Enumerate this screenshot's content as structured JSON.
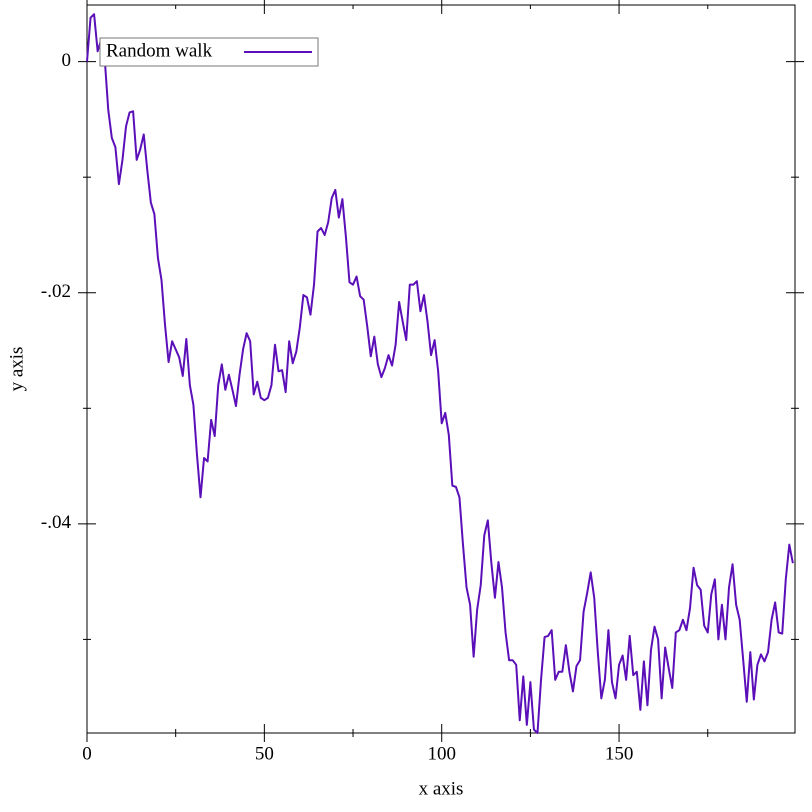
{
  "chart_data": {
    "type": "line",
    "xlabel": "x axis",
    "ylabel": "y axis",
    "x": [
      0,
      1,
      2,
      3,
      4,
      5,
      6,
      7,
      8,
      9,
      10,
      11,
      12,
      13,
      14,
      15,
      16,
      17,
      18,
      19,
      20,
      21,
      22,
      23,
      24,
      25,
      26,
      27,
      28,
      29,
      30,
      31,
      32,
      33,
      34,
      35,
      36,
      37,
      38,
      39,
      40,
      41,
      42,
      43,
      44,
      45,
      46,
      47,
      48,
      49,
      50,
      51,
      52,
      53,
      54,
      55,
      56,
      57,
      58,
      59,
      60,
      61,
      62,
      63,
      64,
      65,
      66,
      67,
      68,
      69,
      70,
      71,
      72,
      73,
      74,
      75,
      76,
      77,
      78,
      79,
      80,
      81,
      82,
      83,
      84,
      85,
      86,
      87,
      88,
      89,
      90,
      91,
      92,
      93,
      94,
      95,
      96,
      97,
      98,
      99,
      100,
      101,
      102,
      103,
      104,
      105,
      106,
      107,
      108,
      109,
      110,
      111,
      112,
      113,
      114,
      115,
      116,
      117,
      118,
      119,
      120,
      121,
      122,
      123,
      124,
      125,
      126,
      127,
      128,
      129,
      130,
      131,
      132,
      133,
      134,
      135,
      136,
      137,
      138,
      139,
      140,
      141,
      142,
      143,
      144,
      145,
      146,
      147,
      148,
      149,
      150,
      151,
      152,
      153,
      154,
      155,
      156,
      157,
      158,
      159,
      160,
      161,
      162,
      163,
      164,
      165,
      166,
      167,
      168,
      169,
      170,
      171,
      172,
      173,
      174,
      175,
      176,
      177,
      178,
      179,
      180,
      181,
      182,
      183,
      184,
      185,
      186,
      187,
      188,
      189,
      190,
      191,
      192,
      193,
      194,
      195,
      196,
      197,
      198,
      199
    ],
    "series": [
      {
        "name": "Random walk",
        "color": "#5b0fb8",
        "values": [
          0,
          0.0038,
          0.0041,
          0.0009,
          0.0019,
          0.0002,
          -0.0042,
          -0.0066,
          -0.0074,
          -0.0106,
          -0.0085,
          -0.0056,
          -0.0044,
          -0.0043,
          -0.0085,
          -0.0076,
          -0.0063,
          -0.0094,
          -0.0122,
          -0.0132,
          -0.017,
          -0.0189,
          -0.0228,
          -0.026,
          -0.0242,
          -0.0249,
          -0.0256,
          -0.0272,
          -0.024,
          -0.028,
          -0.0297,
          -0.034,
          -0.0377,
          -0.0343,
          -0.0346,
          -0.031,
          -0.0324,
          -0.028,
          -0.0262,
          -0.0284,
          -0.0271,
          -0.0284,
          -0.0298,
          -0.0271,
          -0.0249,
          -0.0235,
          -0.0242,
          -0.0288,
          -0.0277,
          -0.0291,
          -0.0293,
          -0.0291,
          -0.028,
          -0.0245,
          -0.0268,
          -0.0267,
          -0.0286,
          -0.0242,
          -0.0261,
          -0.0251,
          -0.023,
          -0.0202,
          -0.0204,
          -0.0219,
          -0.0193,
          -0.0147,
          -0.0144,
          -0.015,
          -0.0139,
          -0.0118,
          -0.0111,
          -0.0135,
          -0.0119,
          -0.0152,
          -0.0191,
          -0.0193,
          -0.0186,
          -0.0203,
          -0.0206,
          -0.0229,
          -0.0255,
          -0.0238,
          -0.0262,
          -0.0273,
          -0.0265,
          -0.0254,
          -0.0263,
          -0.0245,
          -0.0208,
          -0.0225,
          -0.0241,
          -0.0193,
          -0.0193,
          -0.019,
          -0.0216,
          -0.0202,
          -0.0225,
          -0.0254,
          -0.0241,
          -0.0268,
          -0.0313,
          -0.0304,
          -0.0323,
          -0.0367,
          -0.0368,
          -0.0377,
          -0.0418,
          -0.0455,
          -0.047,
          -0.0515,
          -0.0474,
          -0.0453,
          -0.041,
          -0.0397,
          -0.0434,
          -0.0464,
          -0.0433,
          -0.0455,
          -0.0494,
          -0.0518,
          -0.0518,
          -0.0522,
          -0.057,
          -0.0532,
          -0.0574,
          -0.0537,
          -0.0578,
          -0.0581,
          -0.0535,
          -0.0498,
          -0.0497,
          -0.0492,
          -0.0535,
          -0.0528,
          -0.0528,
          -0.0505,
          -0.0528,
          -0.0545,
          -0.0523,
          -0.0518,
          -0.0476,
          -0.046,
          -0.0442,
          -0.0464,
          -0.0511,
          -0.0551,
          -0.0535,
          -0.0492,
          -0.0537,
          -0.0551,
          -0.0522,
          -0.0514,
          -0.0535,
          -0.0497,
          -0.0531,
          -0.0528,
          -0.0561,
          -0.0519,
          -0.0557,
          -0.0509,
          -0.0489,
          -0.05,
          -0.0551,
          -0.0507,
          -0.0525,
          -0.0542,
          -0.0494,
          -0.0492,
          -0.0483,
          -0.0492,
          -0.0473,
          -0.0438,
          -0.0453,
          -0.0457,
          -0.0488,
          -0.0494,
          -0.0461,
          -0.0448,
          -0.05,
          -0.047,
          -0.05,
          -0.0455,
          -0.0435,
          -0.047,
          -0.0483,
          -0.0518,
          -0.0554,
          -0.0511,
          -0.0552,
          -0.0522,
          -0.0513,
          -0.0519,
          -0.0511,
          -0.0483,
          -0.0468,
          -0.0494,
          -0.0495,
          -0.0448,
          -0.0418,
          -0.0434
        ]
      }
    ],
    "xlim": [
      0,
      199.6
    ],
    "xticks": [
      0,
      50,
      100,
      150
    ],
    "xminorticks": [
      25,
      75,
      125,
      175
    ],
    "ylim": [
      -0.0581,
      0.0049
    ],
    "yticks": [
      0,
      {
        "value": -0.02,
        "label": "-.02"
      },
      {
        "value": -0.04,
        "label": "-.04"
      }
    ],
    "yminorticks": [
      -0.01,
      -0.03,
      -0.05
    ],
    "legend": "top-left"
  }
}
